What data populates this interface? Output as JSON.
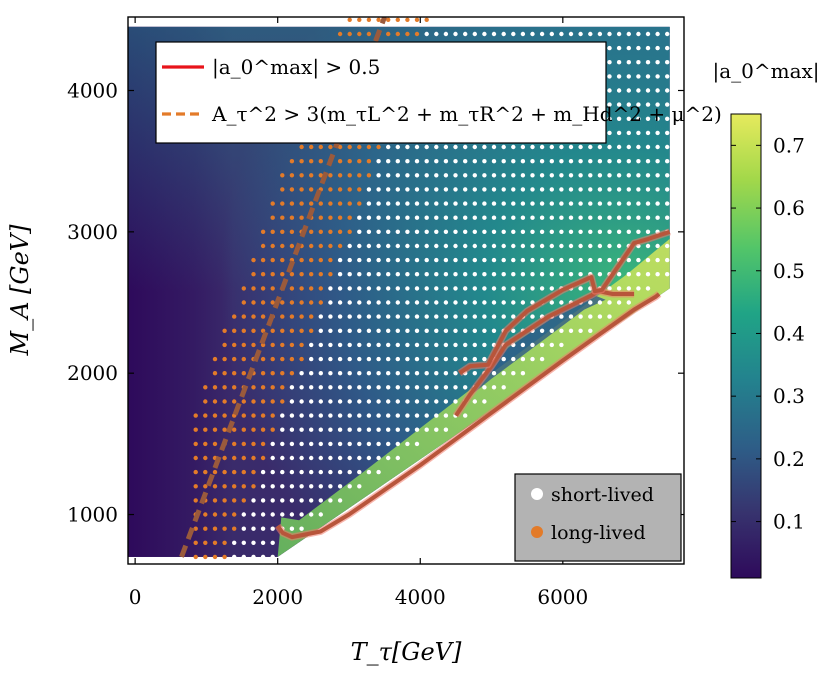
{
  "chart_data": {
    "type": "heatmap",
    "title": "",
    "xlabel": "T_τ[GeV]",
    "ylabel": "M_A [GeV]",
    "xlim": [
      -100,
      7700
    ],
    "ylim": [
      650,
      4520
    ],
    "x_ticks": [
      "0",
      "2000",
      "4000",
      "6000"
    ],
    "x_tick_values": [
      0,
      2000,
      4000,
      6000
    ],
    "y_ticks": [
      "1000",
      "2000",
      "3000",
      "4000"
    ],
    "y_tick_values": [
      1000,
      2000,
      3000,
      4000
    ],
    "colorbar": {
      "label": "|a_0^max|",
      "range": [
        0.01,
        0.75
      ],
      "ticks": [
        "0.1",
        "0.2",
        "0.3",
        "0.4",
        "0.5",
        "0.6",
        "0.7"
      ],
      "tick_values": [
        0.1,
        0.2,
        0.3,
        0.4,
        0.5,
        0.6,
        0.7
      ],
      "colormap_stops": [
        "#2e0a5b",
        "#37336e",
        "#2e5d87",
        "#23838e",
        "#20a486",
        "#52c569",
        "#a3d84a",
        "#e6ea5d"
      ]
    },
    "domain_boundary": [
      [
        2000,
        700
      ],
      [
        7500,
        2600
      ],
      [
        7500,
        4450
      ],
      [
        -100,
        4450
      ],
      [
        -100,
        700
      ]
    ],
    "contour_abs_a0_gt_0p5": {
      "label": "|a_0^max| > 0.5",
      "color": "#d23c1c",
      "segments": [
        [
          [
            2000,
            920
          ],
          [
            2070,
            870
          ],
          [
            2200,
            840
          ],
          [
            2600,
            880
          ],
          [
            3000,
            1000
          ],
          [
            4000,
            1350
          ],
          [
            5000,
            1720
          ],
          [
            6000,
            2090
          ],
          [
            7000,
            2450
          ],
          [
            7300,
            2540
          ],
          [
            7350,
            2560
          ]
        ],
        [
          [
            4500,
            1700
          ],
          [
            4700,
            1850
          ],
          [
            4850,
            1950
          ],
          [
            5000,
            2050
          ],
          [
            5200,
            2200
          ],
          [
            5800,
            2400
          ],
          [
            6400,
            2550
          ],
          [
            6500,
            2580
          ],
          [
            6700,
            2560
          ],
          [
            7000,
            2560
          ]
        ],
        [
          [
            4550,
            2000
          ],
          [
            4700,
            2050
          ],
          [
            4950,
            2060
          ],
          [
            5200,
            2300
          ],
          [
            5500,
            2440
          ],
          [
            6000,
            2590
          ],
          [
            6400,
            2680
          ],
          [
            6450,
            2580
          ],
          [
            6550,
            2590
          ],
          [
            6700,
            2700
          ],
          [
            7000,
            2920
          ],
          [
            7200,
            2950
          ],
          [
            7500,
            3000
          ]
        ]
      ]
    },
    "constraint_line": {
      "label": "A_τ^2 > 3(m_τL^2 + m_τR^2 + m_Hd^2 + μ^2)",
      "type": "dashed",
      "color": "#e37b29",
      "x": [
        650,
        3500
      ],
      "y": [
        700,
        4520
      ]
    },
    "scatter_grid": {
      "x_start": 850,
      "x_step": 135,
      "y_start": 700,
      "y_step": 100,
      "x_max": 7500,
      "y_max": 4500,
      "long_lived_rule": "T_τ below the constraint line (x < 650 + 0.746*(M_A - 700)) shown as long-lived, otherwise short-lived; no points in the lower-right excluded region",
      "long_lived_color": "#e37b29",
      "short_lived_color": "#ffffff"
    },
    "legend_top": [
      {
        "label": "|a_0^max| > 0.5",
        "style": "solid",
        "color": "#d23c1c"
      },
      {
        "label": "A_τ^2 > 3(m_τL^2 + m_τR^2 + m_Hd^2 + μ^2)",
        "style": "dashed",
        "color": "#e37b29"
      }
    ],
    "legend_bottom": [
      {
        "label": "short-lived",
        "color": "#ffffff"
      },
      {
        "label": "long-lived",
        "color": "#e37b29"
      }
    ]
  }
}
